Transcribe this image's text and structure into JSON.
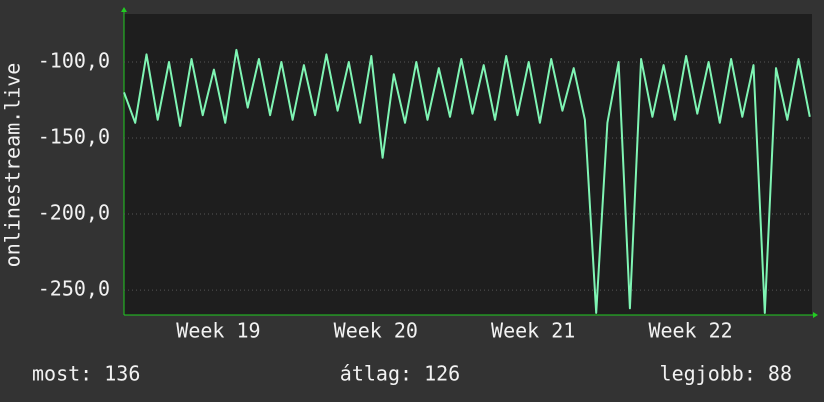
{
  "chart_data": {
    "type": "line",
    "ylabel": "onlinestream.live",
    "x": [
      0,
      0.5,
      1,
      1.5,
      2,
      2.5,
      3,
      3.5,
      4,
      4.5,
      5,
      5.5,
      6,
      6.5,
      7,
      7.5,
      8,
      8.5,
      9,
      9.5,
      10,
      10.5,
      11,
      11.5,
      12,
      12.5,
      13,
      13.5,
      14,
      14.5,
      15,
      15.5,
      16,
      16.5,
      17,
      17.5,
      18,
      18.5,
      19,
      19.5,
      20,
      20.5,
      21,
      21.5,
      22,
      22.5,
      23,
      23.5,
      24,
      24.5,
      25,
      25.5,
      26,
      26.5,
      27,
      27.5,
      28,
      28.5,
      29,
      29.5,
      30,
      30.5
    ],
    "series": [
      {
        "name": "onlinestream.live",
        "color": "#7ff5b4",
        "values": [
          -120,
          -140,
          -95,
          -138,
          -100,
          -142,
          -98,
          -135,
          -105,
          -140,
          -92,
          -130,
          -98,
          -135,
          -100,
          -138,
          -102,
          -135,
          -95,
          -132,
          -100,
          -140,
          -96,
          -163,
          -108,
          -140,
          -100,
          -138,
          -104,
          -136,
          -98,
          -134,
          -102,
          -138,
          -96,
          -135,
          -100,
          -140,
          -98,
          -132,
          -104,
          -138,
          -265,
          -140,
          -100,
          -262,
          -98,
          -136,
          -102,
          -138,
          -96,
          -134,
          -100,
          -140,
          -98,
          -136,
          -102,
          -265,
          -104,
          -138,
          -98,
          -136
        ]
      }
    ],
    "xlim": [
      0,
      30.6
    ],
    "xticks": [
      {
        "value": 4.2,
        "label": "Week 19"
      },
      {
        "value": 11.2,
        "label": "Week 20"
      },
      {
        "value": 18.2,
        "label": "Week 21"
      },
      {
        "value": 25.2,
        "label": "Week 22"
      }
    ],
    "ylim": [
      -266.4,
      -68.4
    ],
    "yticks": [
      {
        "value": -100,
        "label": "-100,0"
      },
      {
        "value": -150,
        "label": "-150,0"
      },
      {
        "value": -200,
        "label": "-200,0"
      },
      {
        "value": -250,
        "label": "-250,0"
      }
    ],
    "grid": true,
    "summary": [
      "most: 136",
      "átlag: 126",
      "legjobb: 88"
    ]
  }
}
